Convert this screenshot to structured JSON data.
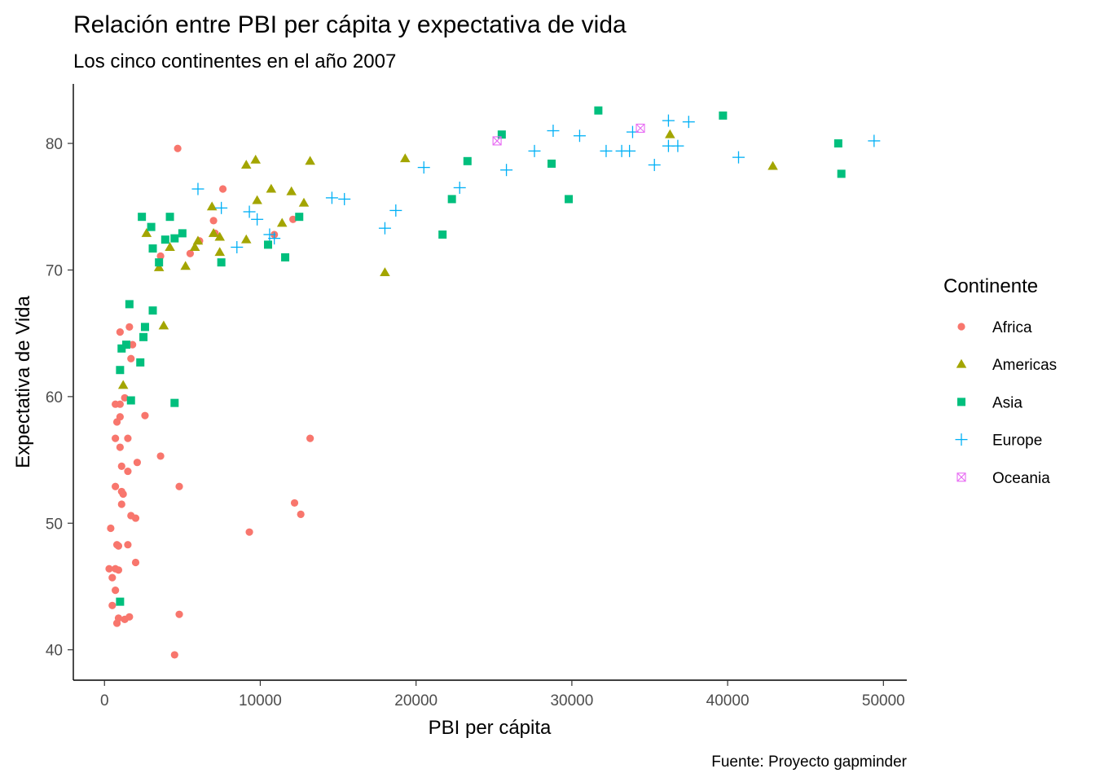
{
  "chart_data": {
    "type": "scatter",
    "title": "Relación entre PBI per cápita y expectativa de vida",
    "subtitle": "Los cinco continentes en el año 2007",
    "xlabel": "PBI per cápita",
    "ylabel": "Expectativa de Vida",
    "caption": "Fuente: Proyecto gapminder",
    "xlim": [
      -2000,
      51500
    ],
    "ylim": [
      37.6,
      84.7
    ],
    "xticks": [
      0,
      10000,
      20000,
      30000,
      40000,
      50000
    ],
    "yticks": [
      40,
      50,
      60,
      70,
      80
    ],
    "xtick_labels": [
      "0",
      "10000",
      "20000",
      "30000",
      "40000",
      "50000"
    ],
    "ytick_labels": [
      "40",
      "50",
      "60",
      "70",
      "80"
    ],
    "grid": false,
    "legend": {
      "title": "Continente",
      "position": "right"
    },
    "series": [
      {
        "name": "Africa",
        "shape": "circle",
        "color": "#F8766D",
        "points": [
          [
            7600,
            76.4
          ],
          [
            4700,
            79.6
          ],
          [
            7000,
            73.9
          ],
          [
            3600,
            71.1
          ],
          [
            5500,
            71.3
          ],
          [
            7100,
            72.9
          ],
          [
            6100,
            72.3
          ],
          [
            12100,
            74.0
          ],
          [
            10900,
            72.8
          ],
          [
            1000,
            65.1
          ],
          [
            1600,
            65.5
          ],
          [
            1800,
            64.1
          ],
          [
            1700,
            63.0
          ],
          [
            1300,
            59.9
          ],
          [
            700,
            59.4
          ],
          [
            1000,
            59.4
          ],
          [
            2600,
            58.5
          ],
          [
            800,
            58.0
          ],
          [
            1000,
            58.4
          ],
          [
            700,
            56.7
          ],
          [
            1500,
            56.7
          ],
          [
            1000,
            56.0
          ],
          [
            3600,
            55.3
          ],
          [
            1500,
            54.1
          ],
          [
            1100,
            54.5
          ],
          [
            2100,
            54.8
          ],
          [
            700,
            52.9
          ],
          [
            1200,
            52.3
          ],
          [
            1100,
            52.5
          ],
          [
            4800,
            52.9
          ],
          [
            1100,
            51.5
          ],
          [
            1700,
            50.6
          ],
          [
            2000,
            50.4
          ],
          [
            13200,
            56.7
          ],
          [
            12200,
            51.6
          ],
          [
            12600,
            50.7
          ],
          [
            9300,
            49.3
          ],
          [
            400,
            49.6
          ],
          [
            800,
            48.3
          ],
          [
            900,
            48.2
          ],
          [
            1500,
            48.3
          ],
          [
            2000,
            46.9
          ],
          [
            300,
            46.4
          ],
          [
            700,
            46.4
          ],
          [
            900,
            46.3
          ],
          [
            500,
            45.7
          ],
          [
            700,
            44.7
          ],
          [
            500,
            43.5
          ],
          [
            900,
            42.5
          ],
          [
            1300,
            42.4
          ],
          [
            1600,
            42.6
          ],
          [
            800,
            42.1
          ],
          [
            4800,
            42.8
          ],
          [
            4500,
            39.6
          ]
        ]
      },
      {
        "name": "Americas",
        "shape": "triangle",
        "color": "#A3A500",
        "points": [
          [
            36300,
            80.7
          ],
          [
            9100,
            78.3
          ],
          [
            9700,
            78.7
          ],
          [
            13200,
            78.6
          ],
          [
            19300,
            78.8
          ],
          [
            42900,
            78.2
          ],
          [
            10700,
            76.4
          ],
          [
            12000,
            76.2
          ],
          [
            9800,
            75.5
          ],
          [
            6900,
            75.0
          ],
          [
            12800,
            75.3
          ],
          [
            11400,
            73.7
          ],
          [
            2700,
            72.9
          ],
          [
            7000,
            72.9
          ],
          [
            7400,
            72.6
          ],
          [
            4200,
            71.8
          ],
          [
            6000,
            72.3
          ],
          [
            5800,
            71.8
          ],
          [
            7400,
            71.4
          ],
          [
            9100,
            72.4
          ],
          [
            3500,
            70.2
          ],
          [
            5200,
            70.3
          ],
          [
            18000,
            69.8
          ],
          [
            3800,
            65.6
          ],
          [
            1200,
            60.9
          ]
        ]
      },
      {
        "name": "Asia",
        "shape": "square",
        "color": "#00BF7D",
        "points": [
          [
            31700,
            82.6
          ],
          [
            39700,
            82.2
          ],
          [
            25500,
            80.7
          ],
          [
            47100,
            80.0
          ],
          [
            47300,
            77.6
          ],
          [
            28700,
            78.4
          ],
          [
            23300,
            78.6
          ],
          [
            29800,
            75.6
          ],
          [
            22300,
            75.6
          ],
          [
            21700,
            72.8
          ],
          [
            12500,
            74.2
          ],
          [
            11600,
            71.0
          ],
          [
            10500,
            72.0
          ],
          [
            2400,
            74.2
          ],
          [
            4200,
            74.2
          ],
          [
            3000,
            73.4
          ],
          [
            5000,
            72.9
          ],
          [
            4500,
            72.5
          ],
          [
            3900,
            72.4
          ],
          [
            3100,
            71.7
          ],
          [
            7500,
            70.6
          ],
          [
            3500,
            70.6
          ],
          [
            1600,
            67.3
          ],
          [
            3100,
            66.8
          ],
          [
            2600,
            65.5
          ],
          [
            2500,
            64.7
          ],
          [
            1400,
            64.1
          ],
          [
            1100,
            63.8
          ],
          [
            2300,
            62.7
          ],
          [
            1000,
            62.1
          ],
          [
            1700,
            59.7
          ],
          [
            4500,
            59.5
          ],
          [
            1000,
            43.8
          ]
        ]
      },
      {
        "name": "Europe",
        "shape": "plus",
        "color": "#00B0F6",
        "points": [
          [
            36200,
            81.8
          ],
          [
            37500,
            81.7
          ],
          [
            28800,
            81.0
          ],
          [
            33900,
            80.9
          ],
          [
            49400,
            80.2
          ],
          [
            30500,
            80.6
          ],
          [
            36200,
            79.8
          ],
          [
            36800,
            79.8
          ],
          [
            27600,
            79.4
          ],
          [
            32200,
            79.4
          ],
          [
            33200,
            79.4
          ],
          [
            33700,
            79.4
          ],
          [
            40700,
            78.9
          ],
          [
            35300,
            78.3
          ],
          [
            25800,
            77.9
          ],
          [
            20500,
            78.1
          ],
          [
            22800,
            76.5
          ],
          [
            14600,
            75.7
          ],
          [
            15400,
            75.6
          ],
          [
            6000,
            76.4
          ],
          [
            7500,
            74.9
          ],
          [
            9300,
            74.6
          ],
          [
            9800,
            74.0
          ],
          [
            18700,
            74.7
          ],
          [
            18000,
            73.3
          ],
          [
            10600,
            72.8
          ],
          [
            10900,
            72.5
          ],
          [
            8500,
            71.8
          ]
        ]
      },
      {
        "name": "Oceania",
        "shape": "square-x",
        "color": "#E76BF3",
        "points": [
          [
            34400,
            81.2
          ],
          [
            25200,
            80.2
          ]
        ]
      }
    ]
  }
}
